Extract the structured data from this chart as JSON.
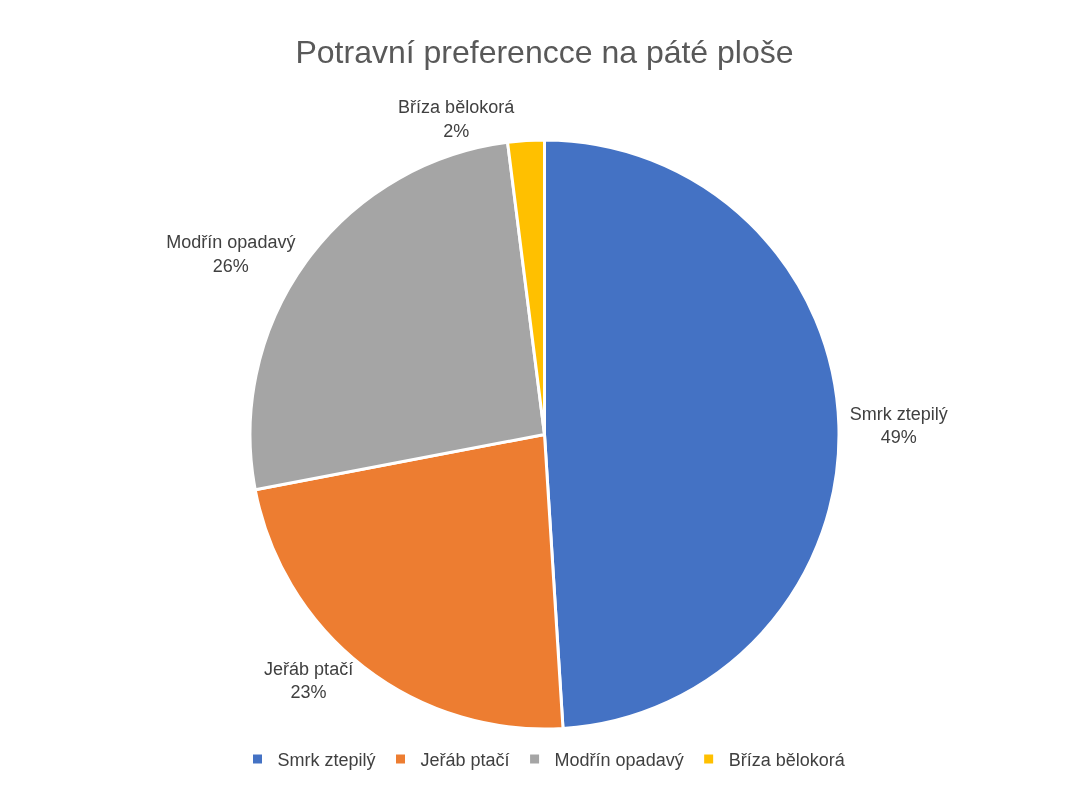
{
  "chart_data": {
    "type": "pie",
    "title": "Potravní preferencce na páté ploše",
    "categories": [
      "Smrk ztepilý",
      "Jeřáb ptačí",
      "Modřín opadavý",
      "Bříza bělokorá"
    ],
    "values": [
      49,
      23,
      26,
      2
    ],
    "value_labels": [
      "49%",
      "23%",
      "26%",
      "2%"
    ],
    "colors": [
      "#4472c4",
      "#ed7d31",
      "#a5a5a5",
      "#ffc000"
    ],
    "legend": "bottom"
  }
}
